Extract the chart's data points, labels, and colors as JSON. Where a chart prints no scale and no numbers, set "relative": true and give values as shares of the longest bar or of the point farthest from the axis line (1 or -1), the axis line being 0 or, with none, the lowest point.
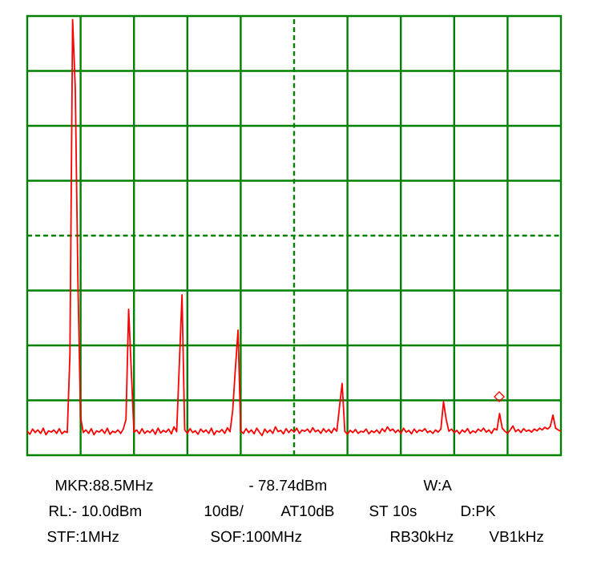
{
  "chart_data": {
    "type": "line",
    "relative": true,
    "grid": true,
    "ref_lines": [
      {
        "axis": "y",
        "value": 0.504,
        "color": "#008000",
        "line_style": "dashed"
      }
    ],
    "categories": [
      null,
      null,
      null,
      null,
      null,
      null,
      null,
      null,
      null,
      null,
      null,
      null,
      null,
      null,
      null,
      null,
      null,
      null,
      null,
      null,
      null,
      null,
      null,
      null,
      null,
      null,
      null,
      null,
      null,
      null,
      null,
      null,
      null,
      null,
      null,
      null,
      null,
      null,
      null,
      null,
      null,
      null,
      null,
      null,
      null,
      null,
      null,
      null,
      null,
      null,
      null,
      null,
      null,
      null,
      null,
      null,
      null,
      null,
      null,
      null,
      null,
      null,
      null,
      null,
      null,
      null,
      null,
      null,
      null,
      null,
      null,
      null,
      null,
      null,
      null,
      null,
      null,
      null,
      null,
      null,
      null,
      null,
      null,
      null,
      null,
      null,
      null,
      null,
      null,
      null,
      null,
      null,
      null,
      null,
      null,
      null,
      null,
      null,
      null,
      null,
      null,
      null,
      null,
      null,
      null,
      null,
      null,
      null,
      null,
      null,
      null,
      null,
      null,
      null,
      null,
      null,
      null,
      null,
      null,
      null,
      null,
      null,
      null,
      null,
      null,
      null,
      null,
      null,
      null,
      null,
      null,
      null,
      null,
      null,
      null,
      null,
      null,
      null,
      null,
      null,
      null,
      null,
      null,
      null,
      null,
      null,
      null,
      null,
      null,
      null,
      null,
      null,
      null,
      null,
      null,
      null,
      null,
      null,
      null,
      null,
      null,
      null,
      null,
      null,
      null,
      null,
      null,
      null,
      null,
      null,
      null,
      null,
      null,
      null,
      null,
      null,
      null,
      null,
      null,
      null,
      null,
      null,
      null,
      null,
      null,
      null,
      null,
      null,
      null,
      null,
      null,
      null,
      null,
      null,
      null,
      null,
      null,
      null,
      null,
      null,
      null
    ],
    "series": [
      {
        "color": "#ff0000",
        "values": [
          0.055,
          0.048,
          0.06,
          0.052,
          0.058,
          0.05,
          0.062,
          0.047,
          0.056,
          0.053,
          0.058,
          0.05,
          0.061,
          0.049,
          0.055,
          0.052,
          0.232,
          1.0,
          0.843,
          0.395,
          0.086,
          0.052,
          0.058,
          0.05,
          0.061,
          0.047,
          0.056,
          0.053,
          0.059,
          0.05,
          0.062,
          0.048,
          0.055,
          0.052,
          0.058,
          0.05,
          0.06,
          0.082,
          0.335,
          0.193,
          0.053,
          0.058,
          0.049,
          0.061,
          0.05,
          0.056,
          0.052,
          0.059,
          0.048,
          0.062,
          0.051,
          0.057,
          0.053,
          0.06,
          0.049,
          0.065,
          0.054,
          0.21,
          0.368,
          0.058,
          0.05,
          0.061,
          0.052,
          0.056,
          0.048,
          0.06,
          0.053,
          0.058,
          0.05,
          0.062,
          0.047,
          0.056,
          0.053,
          0.059,
          0.05,
          0.063,
          0.054,
          0.103,
          0.199,
          0.287,
          0.055,
          0.05,
          0.061,
          0.052,
          0.058,
          0.049,
          0.062,
          0.053,
          0.045,
          0.06,
          0.052,
          0.058,
          0.05,
          0.065,
          0.054,
          0.057,
          0.049,
          0.061,
          0.052,
          0.059,
          0.053,
          0.062,
          0.05,
          0.058,
          0.055,
          0.06,
          0.052,
          0.063,
          0.054,
          0.058,
          0.05,
          0.061,
          0.053,
          0.059,
          0.051,
          0.062,
          0.055,
          0.11,
          0.165,
          0.055,
          0.048,
          0.057,
          0.052,
          0.059,
          0.05,
          0.055,
          0.053,
          0.06,
          0.049,
          0.056,
          0.052,
          0.058,
          0.05,
          0.061,
          0.054,
          0.065,
          0.056,
          0.06,
          0.052,
          0.058,
          0.05,
          0.062,
          0.053,
          0.057,
          0.049,
          0.06,
          0.052,
          0.058,
          0.055,
          0.061,
          0.052,
          0.056,
          0.05,
          0.058,
          0.053,
          0.06,
          0.123,
          0.082,
          0.055,
          0.06,
          0.052,
          0.057,
          0.049,
          0.058,
          0.053,
          0.061,
          0.05,
          0.056,
          0.052,
          0.06,
          0.055,
          0.062,
          0.053,
          0.058,
          0.05,
          0.061,
          0.058,
          0.096,
          0.062,
          0.055,
          0.05,
          0.058,
          0.067,
          0.054,
          0.059,
          0.052,
          0.061,
          0.055,
          0.058,
          0.053,
          0.06,
          0.056,
          0.062,
          0.058,
          0.064,
          0.06,
          0.066,
          0.092,
          0.062,
          0.058,
          0.055
        ]
      }
    ],
    "annotations": [
      "MKR:88.5MHz",
      "- 78.74dBm",
      "W:A",
      "RL:- 10.0dBm",
      "10dB/",
      "AT10dB",
      "ST 10s",
      "D:PK",
      "STF:1MHz",
      "SOF:100MHz",
      "RB30kHz",
      "VB1kHz"
    ]
  }
}
